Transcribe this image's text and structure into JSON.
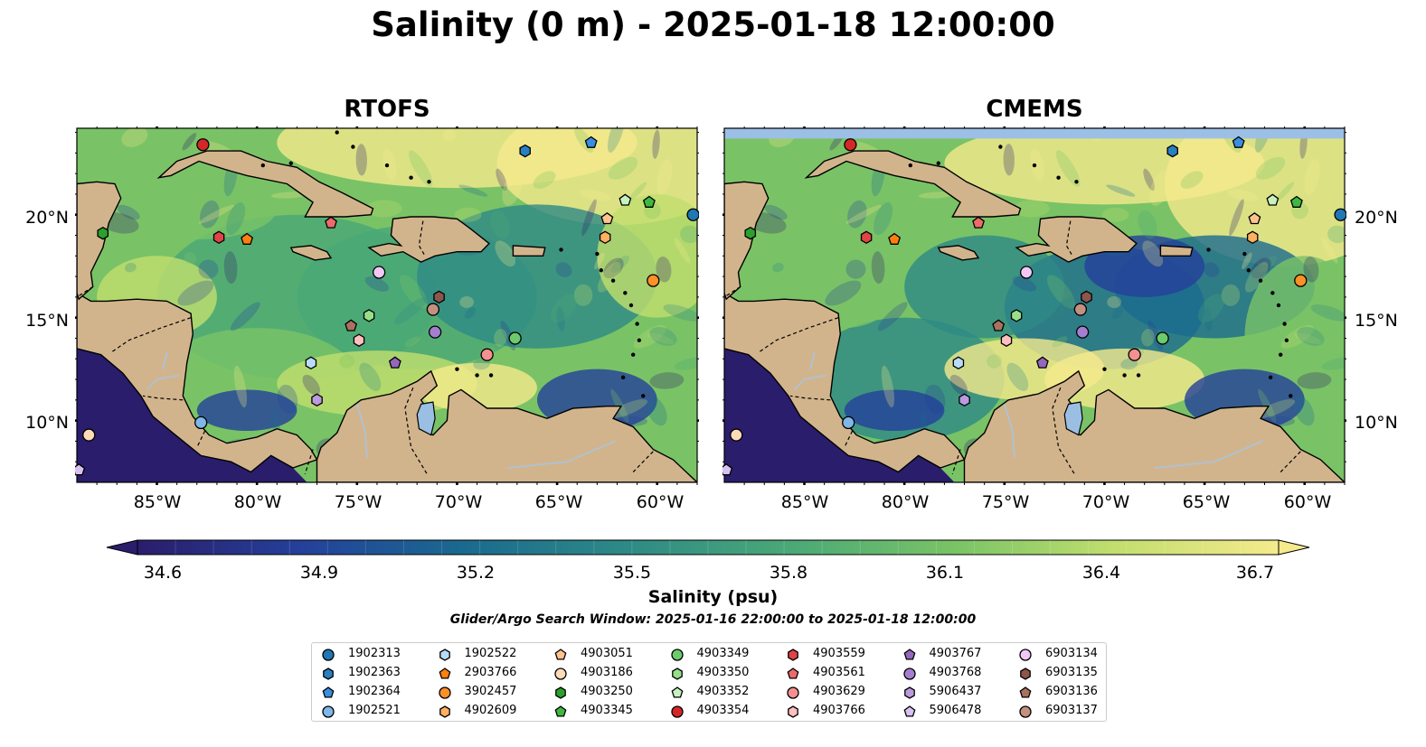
{
  "title": "Salinity (0 m) - 2025-01-18 12:00:00",
  "panels": [
    {
      "title": "RTOFS"
    },
    {
      "title": "CMEMS"
    }
  ],
  "axes": {
    "lat_ticks": [
      "20°N",
      "15°N",
      "10°N"
    ],
    "lon_ticks": [
      "85°W",
      "80°W",
      "75°W",
      "70°W",
      "65°W",
      "60°W"
    ],
    "extent": {
      "lon": [
        -89,
        -58
      ],
      "lat": [
        7,
        24.2
      ]
    }
  },
  "colorbar": {
    "label": "Salinity (psu)",
    "range": [
      34.6,
      36.7
    ],
    "ticks": [
      "34.6",
      "34.9",
      "35.2",
      "35.5",
      "35.8",
      "36.1",
      "36.4",
      "36.7"
    ],
    "colormap": [
      "#2a1d6b",
      "#24409b",
      "#1a6a8f",
      "#2e8a86",
      "#4aa877",
      "#79c366",
      "#c2de6e",
      "#f5ea8c"
    ],
    "extend": "both"
  },
  "search_window": "Glider/Argo Search Window: 2025-01-16 22:00:00 to 2025-01-18 12:00:00",
  "colors": {
    "land": "#d2b48c",
    "lake": "#9abfe3",
    "no_data": "#9cbfe5",
    "pacific": "#2a1d6b"
  },
  "legend": [
    {
      "id": "1902313",
      "marker": "circle",
      "color": "#1f77b4"
    },
    {
      "id": "1902363",
      "marker": "hexagon",
      "color": "#2a7fc0"
    },
    {
      "id": "1902364",
      "marker": "pentagon",
      "color": "#3a8ee0"
    },
    {
      "id": "1902521",
      "marker": "circle",
      "color": "#7fb7e8"
    },
    {
      "id": "1902522",
      "marker": "hexagon",
      "color": "#b7dcf7"
    },
    {
      "id": "2903766",
      "marker": "pentagon",
      "color": "#ff7f0e"
    },
    {
      "id": "3902457",
      "marker": "circle",
      "color": "#ff8f28"
    },
    {
      "id": "4902609",
      "marker": "hexagon",
      "color": "#ffb061"
    },
    {
      "id": "4903051",
      "marker": "pentagon",
      "color": "#ffc48c"
    },
    {
      "id": "4903186",
      "marker": "circle",
      "color": "#ffdcb8"
    },
    {
      "id": "4903250",
      "marker": "hexagon",
      "color": "#2ca02c"
    },
    {
      "id": "4903345",
      "marker": "pentagon",
      "color": "#3fb83f"
    },
    {
      "id": "4903349",
      "marker": "circle",
      "color": "#6ccb6c"
    },
    {
      "id": "4903350",
      "marker": "hexagon",
      "color": "#98df8a"
    },
    {
      "id": "4903352",
      "marker": "pentagon",
      "color": "#c7f2c0"
    },
    {
      "id": "4903354",
      "marker": "circle",
      "color": "#d62728"
    },
    {
      "id": "4903559",
      "marker": "hexagon",
      "color": "#e04444"
    },
    {
      "id": "4903561",
      "marker": "pentagon",
      "color": "#ee6a6a"
    },
    {
      "id": "4903629",
      "marker": "circle",
      "color": "#f59090"
    },
    {
      "id": "4903766",
      "marker": "hexagon",
      "color": "#ffbfbf"
    },
    {
      "id": "4903767",
      "marker": "pentagon",
      "color": "#9467bd"
    },
    {
      "id": "4903768",
      "marker": "circle",
      "color": "#a57fcf"
    },
    {
      "id": "5906437",
      "marker": "hexagon",
      "color": "#bb9ae0"
    },
    {
      "id": "5906478",
      "marker": "pentagon",
      "color": "#d7c2f2"
    },
    {
      "id": "6903134",
      "marker": "circle",
      "color": "#f0c8f5"
    },
    {
      "id": "6903135",
      "marker": "hexagon",
      "color": "#8c564b"
    },
    {
      "id": "6903136",
      "marker": "pentagon",
      "color": "#a8725f"
    },
    {
      "id": "6903137",
      "marker": "circle",
      "color": "#c49080"
    }
  ],
  "floats": [
    {
      "id": "4903354",
      "lon": -82.7,
      "lat": 23.4
    },
    {
      "id": "1902363",
      "lon": -66.6,
      "lat": 23.1
    },
    {
      "id": "1902364",
      "lon": -63.3,
      "lat": 23.5
    },
    {
      "id": "4903352",
      "lon": -61.6,
      "lat": 20.7
    },
    {
      "id": "4903345",
      "lon": -60.4,
      "lat": 20.6
    },
    {
      "id": "4903051",
      "lon": -62.5,
      "lat": 19.8
    },
    {
      "id": "4902609",
      "lon": -62.6,
      "lat": 18.9
    },
    {
      "id": "1902313",
      "lon": -58.2,
      "lat": 20.0
    },
    {
      "id": "4903250",
      "lon": -87.7,
      "lat": 19.1
    },
    {
      "id": "4903559",
      "lon": -81.9,
      "lat": 18.9
    },
    {
      "id": "2903766",
      "lon": -80.5,
      "lat": 18.8
    },
    {
      "id": "4903561",
      "lon": -76.3,
      "lat": 19.6
    },
    {
      "id": "6903134",
      "lon": -73.9,
      "lat": 17.2
    },
    {
      "id": "3902457",
      "lon": -60.2,
      "lat": 16.8
    },
    {
      "id": "6903135",
      "lon": -70.9,
      "lat": 16.0
    },
    {
      "id": "6903137",
      "lon": -71.2,
      "lat": 15.4
    },
    {
      "id": "4903350",
      "lon": -74.4,
      "lat": 15.1
    },
    {
      "id": "6903136",
      "lon": -75.3,
      "lat": 14.6
    },
    {
      "id": "4903766",
      "lon": -74.9,
      "lat": 13.9
    },
    {
      "id": "4903767",
      "lon": -73.1,
      "lat": 12.8
    },
    {
      "id": "4903768",
      "lon": -71.1,
      "lat": 14.3
    },
    {
      "id": "4903349",
      "lon": -67.1,
      "lat": 14.0
    },
    {
      "id": "4903629",
      "lon": -68.5,
      "lat": 13.2
    },
    {
      "id": "1902522",
      "lon": -77.3,
      "lat": 12.8
    },
    {
      "id": "5906437",
      "lon": -77.0,
      "lat": 11.0
    },
    {
      "id": "1902521",
      "lon": -82.8,
      "lat": 9.9
    },
    {
      "id": "4903186",
      "lon": -88.4,
      "lat": 9.3
    },
    {
      "id": "5906478",
      "lon": -88.9,
      "lat": 7.6
    }
  ]
}
